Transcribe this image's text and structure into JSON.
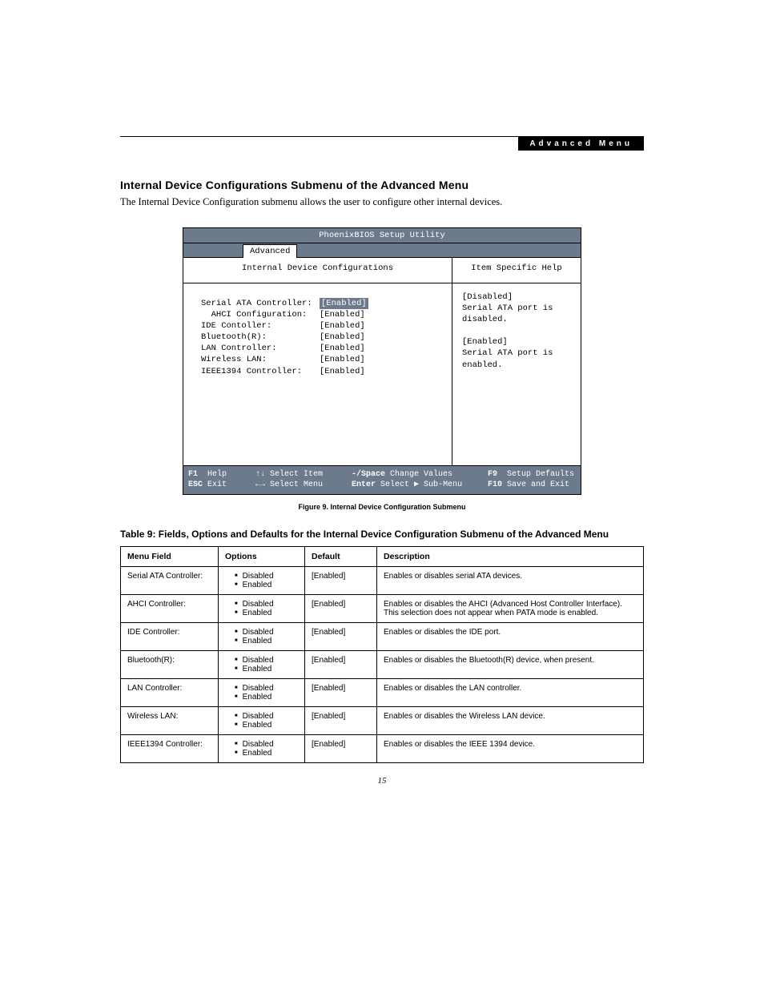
{
  "header_tag": "Advanced Menu",
  "section_title": "Internal Device Configurations Submenu of the Advanced Menu",
  "intro": "The Internal Device Configuration submenu allows the user to configure other internal devices.",
  "bios": {
    "title": "PhoenixBIOS Setup Utility",
    "menutab": "Advanced",
    "left_title": "Internal Device Configurations",
    "right_title": "Item Specific Help",
    "settings": [
      {
        "label": "Serial ATA Controller:",
        "value": "[Enabled]",
        "highlight": true
      },
      {
        "label": "  AHCI Configuration:",
        "value": "[Enabled]",
        "highlight": false
      },
      {
        "label": "IDE Contoller:",
        "value": "[Enabled]",
        "highlight": false
      },
      {
        "label": "Bluetooth(R):",
        "value": "[Enabled]",
        "highlight": false
      },
      {
        "label": "LAN Controller:",
        "value": "[Enabled]",
        "highlight": false
      },
      {
        "label": "Wireless LAN:",
        "value": "[Enabled]",
        "highlight": false
      },
      {
        "label": "IEEE1394 Controller:",
        "value": "[Enabled]",
        "highlight": false
      }
    ],
    "help_text": "[Disabled]\nSerial ATA port is\ndisabled.\n\n[Enabled]\nSerial ATA port is\nenabled.",
    "footer": {
      "row1": {
        "k1": "F1",
        "t1": "Help",
        "k2": "↑↓",
        "t2": "Select Item",
        "k3": "-/Space",
        "t3": "Change Values",
        "k4": "F9",
        "t4": "Setup Defaults"
      },
      "row2": {
        "k1": "ESC",
        "t1": "Exit",
        "k2": "←→",
        "t2": "Select Menu",
        "k3": "Enter",
        "t3": "Select ▶ Sub-Menu",
        "k4": "F10",
        "t4": "Save and Exit"
      }
    }
  },
  "figure_caption": "Figure 9.   Internal Device Configuration Submenu",
  "table_title": "Table 9: Fields, Options and Defaults for the Internal Device Configuration Submenu of the Advanced Menu",
  "table": {
    "headers": [
      "Menu Field",
      "Options",
      "Default",
      "Description"
    ],
    "rows": [
      {
        "field": "Serial ATA Controller:",
        "options": [
          "Disabled",
          "Enabled"
        ],
        "default": "[Enabled]",
        "desc": "Enables or disables serial ATA devices."
      },
      {
        "field": "AHCI Controller:",
        "options": [
          "Disabled",
          "Enabled"
        ],
        "default": "[Enabled]",
        "desc": "Enables or disables the AHCI (Advanced Host Controller Interface). This selection does not appear when PATA mode is enabled."
      },
      {
        "field": "IDE Controller:",
        "options": [
          "Disabled",
          "Enabled"
        ],
        "default": "[Enabled]",
        "desc": "Enables or disables the IDE port."
      },
      {
        "field": "Bluetooth(R):",
        "options": [
          "Disabled",
          "Enabled"
        ],
        "default": "[Enabled]",
        "desc": "Enables or disables the Bluetooth(R) device, when present."
      },
      {
        "field": "LAN Controller:",
        "options": [
          "Disabled",
          "Enabled"
        ],
        "default": "[Enabled]",
        "desc": "Enables or disables the LAN controller."
      },
      {
        "field": "Wireless LAN:",
        "options": [
          "Disabled",
          "Enabled"
        ],
        "default": "[Enabled]",
        "desc": "Enables or disables the Wireless LAN device."
      },
      {
        "field": "IEEE1394 Controller:",
        "options": [
          "Disabled",
          "Enabled"
        ],
        "default": "[Enabled]",
        "desc": "Enables or disables the IEEE 1394 device."
      }
    ]
  },
  "page_number": "15",
  "colors": {
    "bios_bar": "#6c7b8b",
    "text": "#000000",
    "bg": "#ffffff"
  }
}
